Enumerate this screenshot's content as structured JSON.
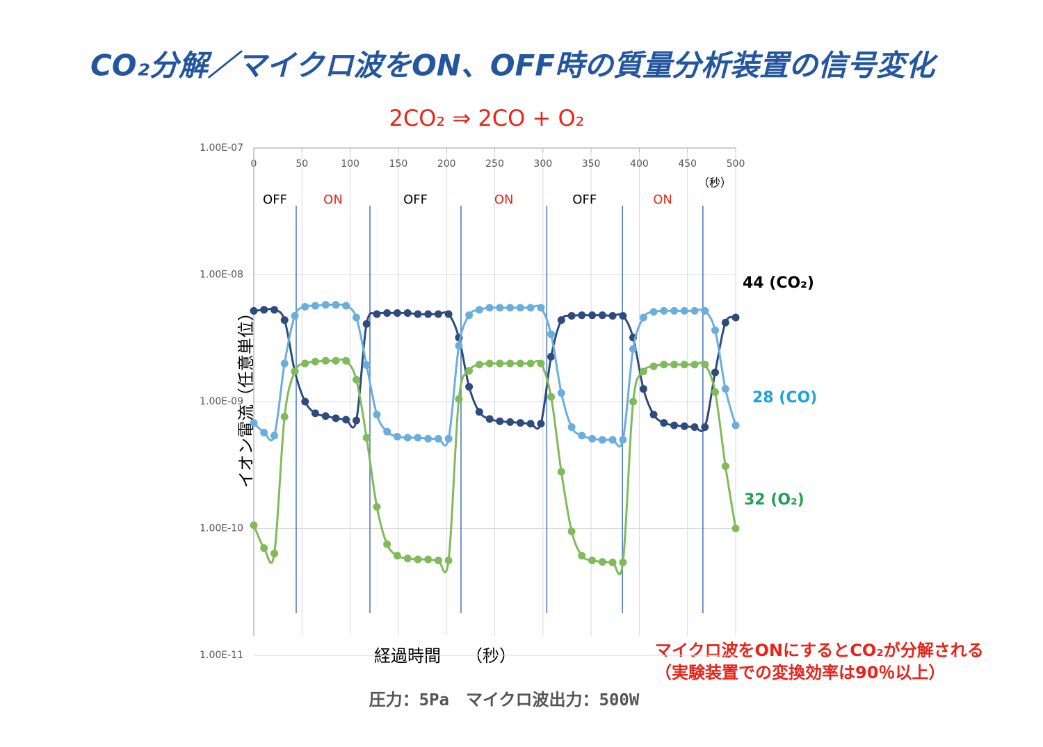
{
  "chart_data": {
    "type": "line",
    "title": "CO₂分解／マイクロ波をON、OFF時の質量分析装置の信号変化",
    "subtitle": "2CO₂ ⇒ 2CO + O₂",
    "xlabel": "経過時間　　（秒）",
    "xunit": "（秒）",
    "ylabel": "イオン電流（任意単位）",
    "note": [
      "マイクロ波をONにするとCO₂が分解される",
      "（実験装置での変換効率は90％以上）"
    ],
    "footer": "圧力：5Pa　マイクロ波出力：500W",
    "log_y": true,
    "grid": true,
    "xlim": [
      0,
      500
    ],
    "xticks": [
      0,
      50,
      100,
      150,
      200,
      250,
      300,
      350,
      400,
      450,
      500
    ],
    "ylim": [
      1e-11,
      1e-07
    ],
    "yticks": [
      {
        "value": 1e-11,
        "label": "1.00E-11"
      },
      {
        "value": 1e-10,
        "label": "1.00E-10"
      },
      {
        "value": 1e-09,
        "label": "1.00E-09"
      },
      {
        "value": 1e-08,
        "label": "1.00E-08"
      },
      {
        "value": 1e-07,
        "label": "1.00E-07"
      }
    ],
    "switch_times": [
      44,
      120.5,
      215,
      304,
      382.5,
      466
    ],
    "switch_color": "#4472c4",
    "phase_labels": [
      "OFF",
      "ON",
      "OFF",
      "ON",
      "OFF",
      "ON"
    ],
    "phase_colors": [
      "#000000",
      "#e8231a",
      "#000000",
      "#e8231a",
      "#000000",
      "#e8231a"
    ],
    "x": [
      0,
      10.6,
      21.3,
      31.9,
      42.6,
      53.2,
      63.8,
      74.5,
      85.1,
      95.7,
      106.4,
      117,
      127.7,
      138.3,
      148.9,
      159.6,
      170.2,
      180.9,
      191.5,
      202.1,
      212.8,
      223.4,
      234,
      244.7,
      255.3,
      266,
      276.6,
      287.2,
      297.9,
      308.5,
      319.1,
      329.8,
      340.4,
      351.1,
      361.7,
      372.3,
      383,
      393.6,
      404.3,
      414.9,
      425.5,
      436.2,
      446.8,
      457.4,
      468.1,
      478.7,
      489.4,
      500
    ],
    "series": [
      {
        "name": "44 (CO₂)",
        "color": "#2e4b7e",
        "label_color": "#000000",
        "values": [
          5.2e-09,
          5.3e-09,
          5.3e-09,
          4.4e-09,
          1.73e-09,
          1e-09,
          8.1e-10,
          7.7e-10,
          7.4e-10,
          7.2e-10,
          7.1e-10,
          4.1e-09,
          4.9e-09,
          5e-09,
          5e-09,
          5e-09,
          4.9e-09,
          4.9e-09,
          4.9e-09,
          4.9e-09,
          3.2e-09,
          1.31e-09,
          8.3e-10,
          7.3e-10,
          7e-10,
          6.9e-10,
          6.8e-10,
          6.7e-10,
          6.7e-10,
          2.26e-09,
          4.4e-09,
          4.75e-09,
          4.8e-09,
          4.8e-09,
          4.8e-09,
          4.75e-09,
          4.75e-09,
          3.2e-09,
          1.26e-09,
          7.9e-10,
          6.8e-10,
          6.5e-10,
          6.4e-10,
          6.3e-10,
          6.3e-10,
          1.7e-09,
          4.2e-09,
          4.6e-09
        ]
      },
      {
        "name": "28 (CO)",
        "color": "#6aaedc",
        "label_color": "#1fa0e0",
        "values": [
          6.8e-10,
          5.7e-10,
          5.4e-10,
          2e-09,
          4.75e-09,
          5.6e-09,
          5.7e-09,
          5.8e-09,
          5.8e-09,
          5.7e-09,
          4.6e-09,
          1.94e-09,
          7.9e-10,
          5.8e-10,
          5.3e-10,
          5.2e-10,
          5.2e-10,
          5.1e-10,
          5.1e-10,
          5.1e-10,
          2.76e-09,
          4.8e-09,
          5.3e-09,
          5.5e-09,
          5.5e-09,
          5.5e-09,
          5.5e-09,
          5.5e-09,
          5.5e-09,
          3.4e-09,
          1.17e-09,
          6.3e-10,
          5.4e-10,
          5.1e-10,
          5e-10,
          5e-10,
          5e-10,
          2.6e-09,
          4.6e-09,
          5.1e-09,
          5.2e-09,
          5.2e-09,
          5.2e-09,
          5.2e-09,
          5.2e-09,
          3.65e-09,
          1.26e-09,
          6.5e-10
        ]
      },
      {
        "name": "32 (O₂)",
        "color": "#80ba5a",
        "label_color": "#22a050",
        "values": [
          1.06e-10,
          7e-11,
          6.35e-11,
          7.6e-10,
          1.73e-09,
          2e-09,
          2.07e-09,
          2.1e-09,
          2.1e-09,
          2.1e-09,
          1.49e-09,
          5.2e-10,
          1.48e-10,
          7.5e-11,
          6.1e-11,
          5.8e-11,
          5.7e-11,
          5.7e-11,
          5.6e-11,
          5.6e-11,
          1.05e-09,
          1.75e-09,
          1.96e-09,
          2e-09,
          2e-09,
          2e-09,
          2e-09,
          2e-09,
          2e-09,
          1.09e-09,
          2.8e-10,
          9.5e-11,
          6.1e-11,
          5.6e-11,
          5.45e-11,
          5.4e-11,
          5.4e-11,
          1e-09,
          1.73e-09,
          1.9e-09,
          1.96e-09,
          1.96e-09,
          1.96e-09,
          1.96e-09,
          1.96e-09,
          1.19e-09,
          3.1e-10,
          1e-10
        ]
      }
    ]
  }
}
